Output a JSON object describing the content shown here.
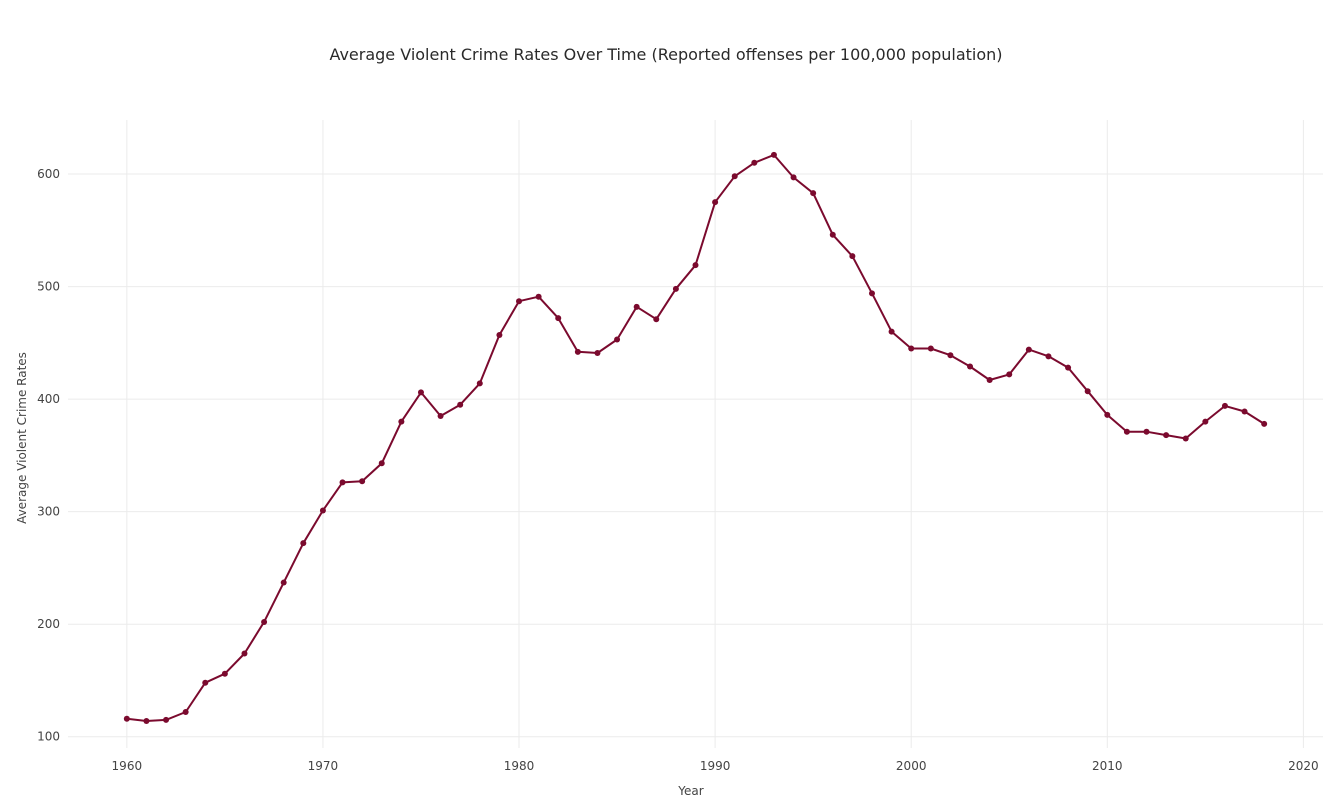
{
  "chart_data": {
    "type": "line",
    "title": "Average Violent Crime Rates Over Time (Reported offenses per 100,000 population)",
    "xlabel": "Year",
    "ylabel": "Average Violent Crime Rates",
    "xlim": [
      1957,
      2021
    ],
    "ylim": [
      90,
      648
    ],
    "x_ticks": [
      1960,
      1970,
      1980,
      1990,
      2000,
      2010,
      2020
    ],
    "y_ticks": [
      100,
      200,
      300,
      400,
      500,
      600
    ],
    "grid": true,
    "line_color": "#7b0a2e",
    "series": [
      {
        "x": [
          1960,
          1961,
          1962,
          1963,
          1964,
          1965,
          1966,
          1967,
          1968,
          1969,
          1970,
          1971,
          1972,
          1973,
          1974,
          1975,
          1976,
          1977,
          1978,
          1979,
          1980,
          1981,
          1982,
          1983,
          1984,
          1985,
          1986,
          1987,
          1988,
          1989,
          1990,
          1991,
          1992,
          1993,
          1994,
          1995,
          1996,
          1997,
          1998,
          1999,
          2000,
          2001,
          2002,
          2003,
          2004,
          2005,
          2006,
          2007,
          2008,
          2009,
          2010,
          2011,
          2012,
          2013,
          2014,
          2015,
          2016,
          2017,
          2018
        ],
        "y": [
          116,
          114,
          115,
          122,
          148,
          156,
          174,
          202,
          237,
          272,
          301,
          326,
          327,
          343,
          380,
          406,
          385,
          395,
          414,
          457,
          487,
          491,
          472,
          442,
          441,
          453,
          482,
          471,
          498,
          519,
          575,
          598,
          610,
          617,
          597,
          583,
          546,
          527,
          494,
          460,
          445,
          445,
          439,
          429,
          417,
          422,
          444,
          438,
          428,
          407,
          386,
          371,
          371,
          368,
          365,
          380,
          394,
          389,
          378
        ]
      }
    ]
  }
}
